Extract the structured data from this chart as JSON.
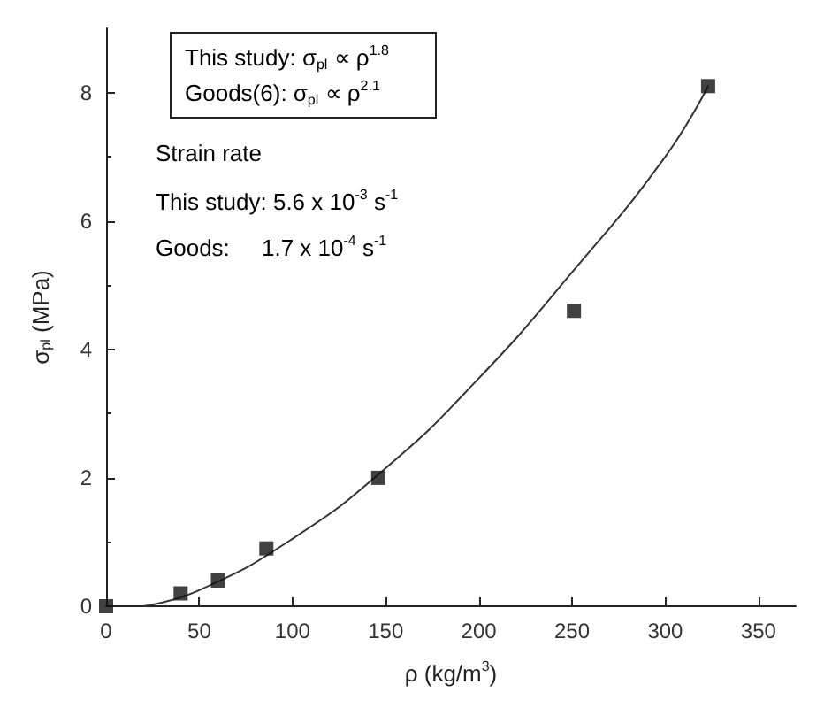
{
  "chart_data": {
    "type": "scatter",
    "xlabel": "ρ (kg/m$^{3}$)",
    "ylabel": "σ$_{pl}$ (MPa)",
    "series": [
      {
        "type": "scatter",
        "color": "#111111",
        "marker": "square",
        "x": [
          0,
          40,
          60,
          86,
          146,
          251,
          323
        ],
        "values": [
          0,
          0.2,
          0.4,
          0.9,
          2.0,
          4.6,
          8.1
        ]
      },
      {
        "type": "line",
        "color": "#333333",
        "marker": "none",
        "line_style": "solid",
        "x": [
          20,
          50,
          100,
          150,
          200,
          250,
          300,
          323
        ],
        "values": [
          0,
          0.25,
          1.05,
          2.15,
          3.55,
          5.2,
          7.0,
          8.1
        ]
      }
    ],
    "xlim": [
      0,
      370
    ],
    "xticks": [
      0,
      50,
      100,
      150,
      200,
      250,
      300,
      350
    ],
    "ylim": [
      0,
      9
    ],
    "yticks": [
      0,
      2,
      4,
      6,
      8
    ],
    "grid": false,
    "annotations": [
      "This study: σ$_{pl}$ ∝ ρ$^{1.8}$",
      "Goods(6): σ$_{pl}$ ∝ ρ$^{2.1}$",
      "Strain rate",
      "This study: 5.6 x 10$^{-3}$ s$^{-1}$",
      "Goods:     1.7 x 10$^{-4}$ s$^{-1}$"
    ]
  }
}
